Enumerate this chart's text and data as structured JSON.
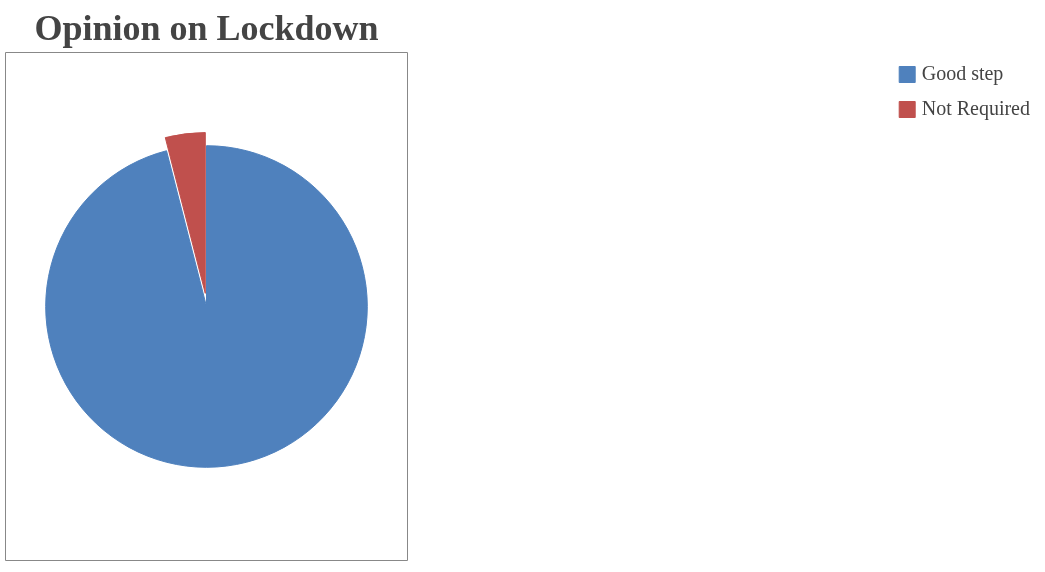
{
  "chart_data": {
    "type": "pie",
    "title": "Opinion on Lockdown",
    "categories": [
      "Good step",
      "Not Required"
    ],
    "values": [
      96,
      4
    ],
    "colors": [
      "#4f81bd",
      "#c0504d"
    ],
    "legend": "right"
  }
}
